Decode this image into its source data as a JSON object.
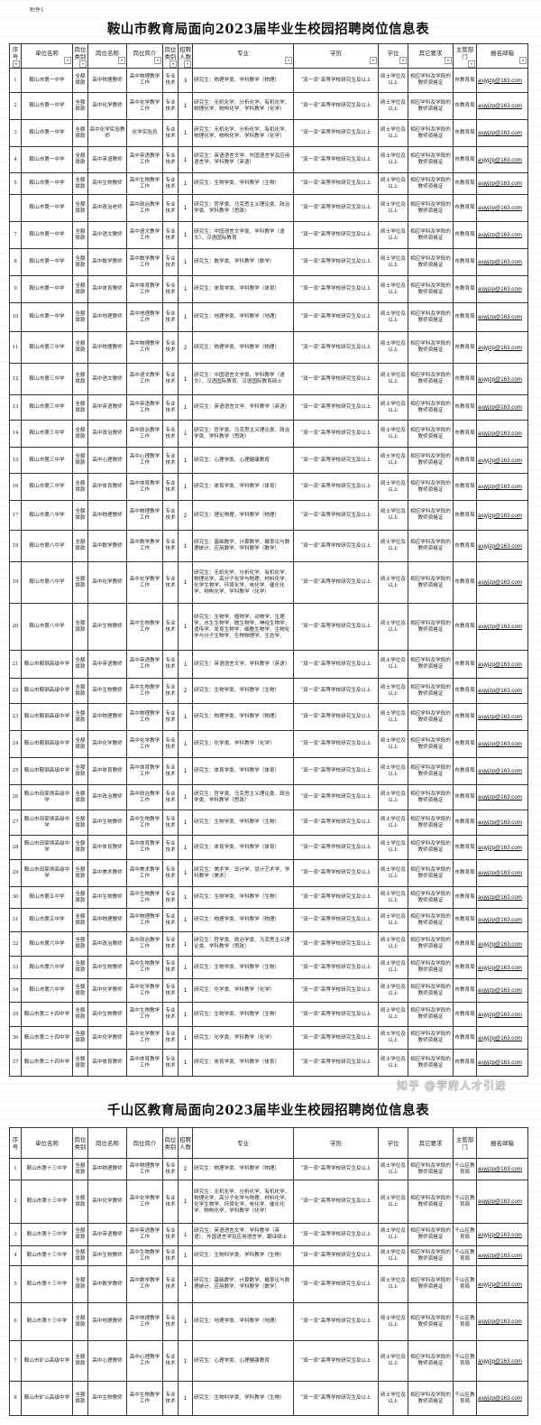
{
  "attachment_label": "附件1",
  "email_default": "asjyjzp@163.com",
  "table1": {
    "title": "鞍山市教育局面向2023届毕业生校园招聘岗位信息表",
    "headers": [
      "序号",
      "单位名称",
      "岗位类别",
      "岗位名称",
      "岗位简介",
      "岗位类别",
      "招聘人数",
      "专业",
      "学历",
      "学位",
      "其它要求",
      "主管部门",
      "报名邮箱"
    ],
    "filter_icon": "dropdown-filter-arrow",
    "rows": [
      [
        "1",
        "鞍山市第一中学",
        "全额拨款",
        "高中物理教师",
        "高中物理教学工作",
        "专业技术",
        "3",
        "研究生：物理学类、学科教学（物理）",
        "“双一流”高等学校研究生及以上",
        "硕士学位及以上",
        "相应学科及学段的教师资格证",
        "市教育局",
        "asjyjzp@163.com"
      ],
      [
        "2",
        "鞍山市第一中学",
        "全额拨款",
        "高中化学教师",
        "高中化学教学工作",
        "专业技术",
        "1",
        "研究生：无机化学、分析化学、有机化学、物理化学、物构化学、学科教学（化学）",
        "“双一流”高等学校研究生及以上",
        "硕士学位及以上",
        "相应学科及学段的教师资格证",
        "市教育局",
        "asjyjzp@163.com"
      ],
      [
        "3",
        "鞍山市第一中学",
        "全额拨款",
        "高中化学实验教师",
        "化学实验员",
        "专业技术",
        "1",
        "研究生：无机化学、分析化学、有机化学、物理化学、物构化学、学科教学（化学）",
        "“双一流”高等学校研究生及以上",
        "硕士学位及以上",
        "相应学科及学段的教师资格证",
        "市教育局",
        "asjyjzp@163.com"
      ],
      [
        "4",
        "鞍山市第一中学",
        "全额拨款",
        "高中英语教师",
        "高中英语教学工作",
        "专业技术",
        "1",
        "研究生：英语语言文学、外国语言学及应用语言学、学科教学（英语）",
        "“双一流”高等学校研究生及以上",
        "硕士学位及以上",
        "相应学科及学段的教师资格证",
        "市教育局",
        "asjyjzp@163.com"
      ],
      [
        "5",
        "鞍山市第一中学",
        "全额拨款",
        "高中生物教师",
        "高中生物教学工作",
        "专业技术",
        "1",
        "研究生：生物学类、学科教学（生物）",
        "“双一流”高等学校研究生及以上",
        "硕士学位及以上",
        "相应学科及学段的教师资格证",
        "市教育局",
        "asjyjzp@163.com"
      ],
      [
        "",
        "鞍山市第一中学",
        "全额拨款",
        "高中政治老师",
        "高中政治教学工作",
        "专业技术",
        "1",
        "研究生：哲学类、马克思主义理论类、政治学类、学科教学（思政）",
        "“双一流”高等学校研究生及以上",
        "硕士学位及以上",
        "相应学科及学段的教师资格证",
        "市教育局",
        "asjyjzp@163.com"
      ],
      [
        "7",
        "鞍山市第一中学",
        "全额拨款",
        "高中语文教师",
        "高中语文教学工作",
        "专业技术",
        "1",
        "研究生：中国语言文学类、学科教学（语文）、汉语国际教育",
        "“双一流”高等学校研究生及以上",
        "硕士学位及以上",
        "相应学科及学段的教师资格证",
        "市教育局",
        "asjyjzp@163.com"
      ],
      [
        "8",
        "鞍山市第一中学",
        "全额拨款",
        "高中数学教师",
        "高中数学教学工作",
        "专业技术",
        "1",
        "研究生：数学类、学科教学（数学）",
        "“双一流”高等学校研究生及以上",
        "硕士学位及以上",
        "相应学科及学段的教师资格证",
        "市教育局",
        "asjyjzp@163.com"
      ],
      [
        "9",
        "鞍山市第一中学",
        "全额拨款",
        "高中体育教师",
        "高中体育教学工作",
        "专业技术",
        "1",
        "研究生：体育学类、学科教学（体育）",
        "“双一流”高等学校研究生及以上",
        "硕士学位及以上",
        "相应学科及学段的教师资格证",
        "市教育局",
        "asjyjzp@163.com"
      ],
      [
        "10",
        "鞍山市第一中学",
        "全额拨款",
        "高中地理教师",
        "高中地理教学工作",
        "专业技术",
        "1",
        "研究生：地理学类、学科教学（地理）",
        "“双一流”高等学校研究生及以上",
        "硕士学位及以上",
        "相应学科及学段的教师资格证",
        "市教育局",
        "asjyjzp@163.com"
      ],
      [
        "11",
        "鞍山市第三中学",
        "全额拨款",
        "高中物理教师",
        "高中物理教学工作",
        "专业技术",
        "2",
        "研究生：物理学类、学科教学（物理）",
        "“双一流”高等学校研究生及以上",
        "硕士学位及以上",
        "相应学科及学段的教师资格证",
        "市教育局",
        "asjyjzp@163.com"
      ],
      [
        "12",
        "鞍山市第三中学",
        "全额拨款",
        "高中语文教师",
        "高中语文教学工作",
        "专业技术",
        "1",
        "研究生：中国语言文学类、学科教学（语文）、汉语国际教育、汉语国际教育硕士",
        "“双一流”高等学校研究生及以上",
        "硕士学位及以上",
        "相应学科及学段的教师资格证",
        "市教育局",
        "asjyjzp@163.com"
      ],
      [
        "13",
        "鞍山市第三中学",
        "全额拨款",
        "高中英语教师",
        "高中英语教学工作",
        "专业技术",
        "1",
        "研究生：英语语言文学、学科教学（英语）",
        "“双一流”高等学校研究生及以上",
        "硕士学位及以上",
        "相应学科及学段的教师资格证",
        "市教育局",
        "asjyjzp@163.com"
      ],
      [
        "14",
        "鞍山市第三中学",
        "全额拨款",
        "高中政治教师",
        "高中政治教学工作",
        "专业技术",
        "1",
        "研究生：哲学类、马克思主义理论类、政治学类、学科教学（思政）",
        "“双一流”高等学校研究生及以上",
        "硕士学位及以上",
        "相应学科及学段的教师资格证",
        "市教育局",
        "asjyjzp@163.com"
      ],
      [
        "15",
        "鞍山市第三中学",
        "全额拨款",
        "高中心理教师",
        "高中心理教学工作",
        "专业技术",
        "1",
        "研究生：心理学类、心理健康教育",
        "“双一流”高等学校研究生及以上",
        "硕士学位及以上",
        "相应学科及学段的教师资格证",
        "市教育局",
        "asjyjzp@163.com"
      ],
      [
        "16",
        "鞍山市第三中学",
        "全额拨款",
        "高中体育教师",
        "高中体育教学工作",
        "专业技术",
        "1",
        "研究生：体育学类、学科教学（体育）",
        "“双一流”高等学校研究生及以上",
        "硕士学位及以上",
        "相应学科及学段的教师资格证",
        "市教育局",
        "asjyjzp@163.com"
      ],
      [
        "17",
        "鞍山市第八中学",
        "全额拨款",
        "高中物理教师",
        "高中物理教学工作",
        "专业技术",
        "2",
        "研究生：理论物理，学科教学（物理）",
        "“双一流”高等学校研究生及以上",
        "硕士学位及以上",
        "相应学科及学段的教师资格证",
        "市教育局",
        "asjyjzp@163.com"
      ],
      [
        "18",
        "鞍山市第八中学",
        "全额拨款",
        "高中数学教师",
        "高中数学教学工作",
        "专业技术",
        "1",
        "研究生：基础数学、计算数学、概率论与数理统计、应用数学、学科教学（数学）",
        "“双一流”高等学校研究生及以上",
        "硕士学位及以上",
        "相应学科及学段的教师资格证",
        "市教育局",
        "asjyjzp@163.com"
      ],
      [
        "19",
        "鞍山市第八中学",
        "全额拨款",
        "高中化学教师",
        "高中化学教学工作",
        "专业技术",
        "1",
        "研究生：无机化学、分析化学、有机化学、物理化学、高分子化学与物理、材料化学、化学生物学、环境化学、电化学、催化化学、物构化学、学科教学（化学）",
        "“双一流”高等学校研究生及以上",
        "硕士学位及以上",
        "相应学科及学段的教师资格证",
        "市教育局",
        "asjyjzp@163.com"
      ],
      [
        "20",
        "鞍山市第八中学",
        "全额拨款",
        "高中生物教师",
        "高中生物教学工作",
        "专业技术",
        "1",
        "研究生：生物学、植物学、动物学、生理学、水生生物学、微生物学、神经生物学、遗传学、发育生物学、细胞生物学、生物化学与分子生物学、生物物理学、生态学、",
        "“双一流”高等学校研究生及以上",
        "硕士学位及以上",
        "相应学科及学段的教师资格证",
        "市教育局",
        "asjyjzp@163.com"
      ],
      [
        "21",
        "鞍山市鞍钢高级中学",
        "全额拨款",
        "高中英语教师",
        "高中英语教学工作",
        "专业技术",
        "1",
        "研究生：英语语言文学、学科教学（英语）",
        "“双一流”高等学校研究生及以上",
        "硕士学位及以上",
        "相应学科及学段的教师资格证",
        "市教育局",
        "asjyjzp@163.com"
      ],
      [
        "22",
        "鞍山市鞍钢高级中学",
        "全额拨款",
        "高中生物教师",
        "高中生物教学工作",
        "专业技术",
        "2",
        "研究生：生物学类、学科教学（生物）",
        "“双一流”高等学校研究生及以上",
        "硕士学位及以上",
        "相应学科及学段的教师资格证",
        "市教育局",
        "asjyjzp@163.com"
      ],
      [
        "23",
        "鞍山市鞍钢高级中学",
        "全额拨款",
        "高中物理教师",
        "高中物理教学工作",
        "专业技术",
        "1",
        "研究生：物理学类、学科教学（物理）",
        "“双一流”高等学校研究生及以上",
        "硕士学位及以上",
        "相应学科及学段的教师资格证",
        "市教育局",
        "asjyjzp@163.com"
      ],
      [
        "24",
        "鞍山市鞍钢高级中学",
        "全额拨款",
        "高中化学教师",
        "高中化学教学工作",
        "专业技术",
        "1",
        "研究生：化学类、学科教学（化学）",
        "“双一流”高等学校研究生及以上",
        "硕士学位及以上",
        "相应学科及学段的教师资格证",
        "市教育局",
        "asjyjzp@163.com"
      ],
      [
        "25",
        "鞍山市鞍钢高级中学",
        "全额拨款",
        "高中体育教师",
        "高中体育教学工作",
        "专业技术",
        "1",
        "研究生：体育学类、学科教学（体育）",
        "“双一流”高等学校研究生及以上",
        "硕士学位及以上",
        "相应学科及学段的教师资格证",
        "市教育局",
        "asjyjzp@163.com"
      ],
      [
        "26",
        "鞍山市田家炳高级中学",
        "全额拨款",
        "高中政治教师",
        "高中政治教学工作",
        "专业技术",
        "1",
        "研究生：哲学类、马克思主义理论类、政治学类、学科教学（思政）",
        "“双一流”高等学校研究生及以上",
        "硕士学位及以上",
        "相应学科及学段的教师资格证",
        "市教育局",
        "asjyjzp@163.com"
      ],
      [
        "27",
        "鞍山市田家炳高级中学",
        "全额拨款",
        "高中生物教师",
        "高中生物教学工作",
        "专业技术",
        "1",
        "研究生：生物学类、学科教学（生物）",
        "“双一流”高等学校研究生及以上",
        "硕士学位及以上",
        "相应学科及学段的教师资格证",
        "市教育局",
        "asjyjzp@163.com"
      ],
      [
        "28",
        "鞍山市田家炳高级中学",
        "全额拨款",
        "高中体育教师",
        "高中体育教学工作",
        "专业技术",
        "1",
        "研究生：体育学类、学科教学（体育）",
        "“双一流”高等学校研究生及以上",
        "硕士学位及以上",
        "相应学科及学段的教师资格证",
        "市教育局",
        "asjyjzp@163.com"
      ],
      [
        "29",
        "鞍山市田家炳高级中学",
        "全额拨款",
        "高中美术教师",
        "高中美术教学工作",
        "专业技术",
        "1",
        "研究生：美术学、设计学、设计艺术学、学科教学（美术）",
        "“双一流”高等学校研究生及以上",
        "硕士学位及以上",
        "相应学科及学段的教师资格证",
        "市教育局",
        "asjyjzp@163.com"
      ],
      [
        "30",
        "鞍山市第五中学",
        "全额拨款",
        "高中生物教师",
        "高中生物教学工作",
        "专业技术",
        "1",
        "研究生：生物学类、学科教学（生物）",
        "“双一流”高等学校研究生及以上",
        "硕士学位及以上",
        "相应学科及学段的教师资格证",
        "市教育局",
        "asjyjzp@163.com"
      ],
      [
        "31",
        "鞍山市第五中学",
        "全额拨款",
        "高中物理教师",
        "高中物理教学工作",
        "专业技术",
        "1",
        "研究生：物理学类、学科教学（物理）",
        "“双一流”高等学校研究生及以上",
        "硕士学位及以上",
        "相应学科及学段的教师资格证",
        "市教育局",
        "asjyjzp@163.com"
      ],
      [
        "32",
        "鞍山市第六中学",
        "全额拨款",
        "高中政治教师",
        "高中政治教学工作",
        "专业技术",
        "1",
        "研究生：哲学类、政治学类、马克思主义理论类、学科教学（思政）",
        "“双一流”高等学校研究生及以上",
        "硕士学位及以上",
        "相应学科及学段的教师资格证",
        "市教育局",
        "asjyjzp@163.com"
      ],
      [
        "33",
        "鞍山市第六中学",
        "全额拨款",
        "高中生物教师",
        "高中生物教学工作",
        "专业技术",
        "1",
        "研究生：生物学类、学科教学（生物）",
        "“双一流”高等学校研究生及以上",
        "硕士学位及以上",
        "相应学科及学段的教师资格证",
        "市教育局",
        "asjyjzp@163.com"
      ],
      [
        "34",
        "鞍山市第六中学",
        "全额拨款",
        "高中化学教师",
        "高中化学教学工作",
        "专业技术",
        "1",
        "研究生：化学类、学科教学（化学）",
        "“双一流”高等学校研究生及以上",
        "硕士学位及以上",
        "相应学科及学段的教师资格证",
        "市教育局",
        "asjyjzp@163.com"
      ],
      [
        "35",
        "鞍山市第二十四中学",
        "全额拨款",
        "高中生物教师",
        "高中生物教学工作",
        "专业技术",
        "1",
        "研究生：生物学类、学科教学（生物）",
        "“双一流”高等学校研究生及以上",
        "硕士学位及以上",
        "相应学科及学段的教师资格证",
        "市教育局",
        "asjyjzp@163.com"
      ],
      [
        "36",
        "鞍山市第二十四中学",
        "全额拨款",
        "高中化学教师",
        "高中化学教学工作",
        "专业技术",
        "1",
        "研究生：化学类、学科教学（化学）",
        "“双一流”高等学校研究生及以上",
        "硕士学位及以上",
        "相应学科及学段的教师资格证",
        "市教育局",
        "asjyjzp@163.com"
      ],
      [
        "37",
        "鞍山市第二十四中学",
        "全额拨款",
        "高中体育教师",
        "高中体育教学工作",
        "专业技术",
        "1",
        "研究生：体育学类、学科教学（体育）",
        "“双一流”高等学校研究生及以上",
        "硕士学位及以上",
        "相应学科及学段的教师资格证",
        "市教育局",
        "asjyjzp@163.com"
      ]
    ]
  },
  "table2": {
    "title": "千山区教育局面向2023届毕业生校园招聘岗位信息表",
    "headers": [
      "序号",
      "单位名称",
      "岗位类别",
      "岗位名称",
      "岗位简介",
      "岗位类别",
      "招聘人数",
      "专业",
      "学历",
      "学位",
      "其它要求",
      "主管部门",
      "报名邮箱"
    ],
    "rows": [
      [
        "1",
        "鞍山市第十三中学",
        "全额拨款",
        "高中物理教师",
        "高中物理教学工作",
        "专业技术",
        "2",
        "研究生：物理学类、学科教学（物理）",
        "“双一流”高等学校研究生及以上",
        "硕士学位及以上",
        "相应学科及学段的教师资格证",
        "千山区教育局",
        "asjyjzp@163.com"
      ],
      [
        "2",
        "鞍山市第十三中学",
        "全额拨款",
        "高中化学教师",
        "高中化学教学工作",
        "专业技术",
        "1",
        "研究生：无机化学、分析化学、有机化学、物理化学、高分子化学与物理、材料化学、化学生物学、环境化学、电化学、催化化学、物构化学、学科教学（化学）",
        "“双一流”高等学校研究生及以上",
        "硕士学位及以上",
        "相应学科及学段的教师资格证",
        "千山区教育局",
        "asjyjzp@163.com"
      ],
      [
        "3",
        "鞍山市第十三中学",
        "全额拨款",
        "高中英语教师",
        "高中英语教学工作",
        "专业技术",
        "1",
        "研究生：英语语言文学、学科教学（英语）、外国语言学及应用语言学、翻译硕士",
        "“双一流”高等学校研究生及以上",
        "硕士学位及以上",
        "相应学科及学段的教师资格证",
        "千山区教育局",
        "asjyjzp@163.com"
      ],
      [
        "4",
        "鞍山市第十三中学",
        "全额拨款",
        "高中生物教师",
        "高中生物教学工作",
        "专业技术",
        "1",
        "研究生：生物科学类、学科教学（生物）",
        "“双一流”高等学校研究生及以上",
        "硕士学位及以上",
        "相应学科及学段的教师资格证",
        "千山区教育局",
        "asjyjzp@163.com"
      ],
      [
        "5",
        "鞍山市第十三中学",
        "全额拨款",
        "高中数学教师",
        "高中数学教学工作",
        "专业技术",
        "1",
        "研究生：基础数学、计算数学、概率论与数理统计、应用数学、学科教学（数学）",
        "“双一流”高等学校研究生及以上",
        "硕士学位及以上",
        "相应学科及学段的教师资格证",
        "千山区教育局",
        "asjyjzp@163.com"
      ],
      [
        "6",
        "鞍山市第十三中学",
        "全额拨款",
        "高中地理教师",
        "高中地理教学工作",
        "专业技术",
        "1",
        "研究生：地理学类、学科教学（地理）",
        "“双一流”高等学校研究生及以上",
        "硕士学位及以上",
        "相应学科及学段的教师资格证",
        "千山区教育局",
        "asjyjzp@163.com"
      ],
      [
        "7",
        "鞍山市矿山高级中学",
        "全额拨款",
        "高中心理教师",
        "高中心理教学工作",
        "专业技术",
        "1",
        "研究生：心理学类、心理健康教育",
        "“双一流”高等学校研究生及以上",
        "硕士学位及以上",
        "相应学科及学段的教师资格证",
        "千山区教育局",
        "asjyjzp@163.com"
      ],
      [
        "8",
        "鞍山市矿山高级中学",
        "全额拨款",
        "高中生物教师",
        "高中生物教学工作",
        "专业技术",
        "1",
        "研究生：生物科学类、学科教学（生物）",
        "“双一流”高等学校研究生及以上",
        "硕士学位及以上",
        "相应学科及学段的教师资格证",
        "千山区教育局",
        "asjyjzp@163.com"
      ]
    ]
  },
  "watermark": "知乎 @学府人才引进"
}
